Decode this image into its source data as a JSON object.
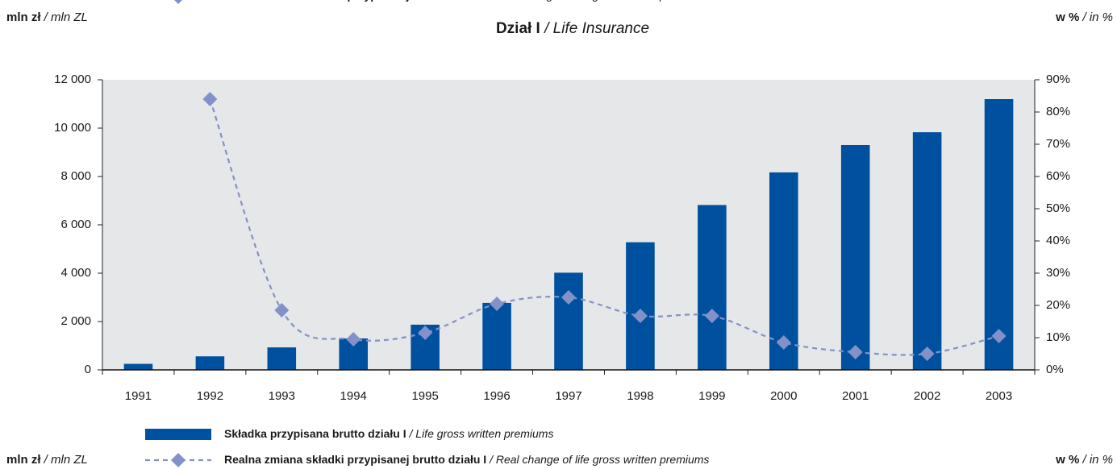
{
  "chart_data": {
    "type": "bar-line",
    "title": "Dział I / Life Insurance",
    "y_label": "mln zł / mln ZL",
    "y2_label": "w % / in %",
    "categories": [
      "1991",
      "1992",
      "1993",
      "1994",
      "1995",
      "1996",
      "1997",
      "1998",
      "1999",
      "2000",
      "2001",
      "2002",
      "2003"
    ],
    "series": [
      {
        "name": "Składka przypisana brutto działu I / Life gross written premiums",
        "type": "bar",
        "color": "#0050a0",
        "values": [
          250,
          560,
          930,
          1300,
          1870,
          2770,
          4020,
          5280,
          6820,
          8170,
          9300,
          9830,
          11200
        ]
      },
      {
        "name": "Realna zmiana składki przypisanej brutto działu I / Real change of life gross written premiums",
        "type": "line",
        "axis": "y2",
        "color": "#8292c8",
        "values": [
          null,
          84,
          18.5,
          9.5,
          11.5,
          20.5,
          22.5,
          16.75,
          16.75,
          8.5,
          5.5,
          5,
          10.5
        ]
      }
    ],
    "ylim": [
      0,
      12000
    ],
    "yticks": [
      0,
      {
        "value": 2000,
        "label": "2 000"
      },
      {
        "value": 4000,
        "label": "4 000"
      },
      {
        "value": 6000,
        "label": "6 000"
      },
      {
        "value": 8000,
        "label": "8 000"
      },
      {
        "value": 10000,
        "label": "10 000"
      },
      {
        "value": 12000,
        "label": "12 000"
      }
    ],
    "y2lim": [
      0,
      90
    ],
    "y2ticks": [
      {
        "value": 0,
        "label": "0%"
      },
      {
        "value": 10,
        "label": "10%"
      },
      {
        "value": 20,
        "label": "20%"
      },
      {
        "value": 30,
        "label": "30%"
      },
      {
        "value": 40,
        "label": "40%"
      },
      {
        "value": 50,
        "label": "50%"
      },
      {
        "value": 60,
        "label": "60%"
      },
      {
        "value": 70,
        "label": "70%"
      },
      {
        "value": 80,
        "label": "80%"
      },
      {
        "value": 90,
        "label": "90%"
      }
    ]
  }
}
